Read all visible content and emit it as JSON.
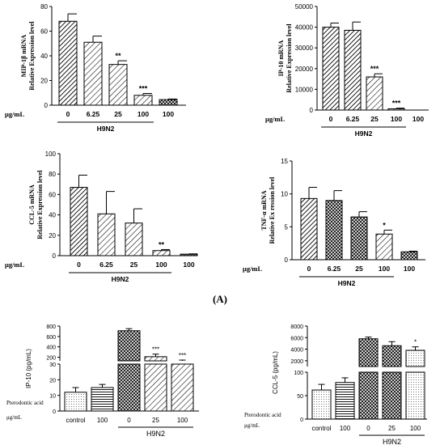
{
  "figure": {
    "panel_label": "(A)"
  },
  "chart_data": [
    {
      "id": "mip",
      "type": "bar",
      "ylabel": [
        "MIP-1β  mRNA",
        "Relative  Expression level"
      ],
      "xunit": "μg/mL",
      "categories": [
        "0",
        "6.25",
        "25",
        "100",
        "100"
      ],
      "values": [
        68,
        51,
        33,
        8,
        4.5
      ],
      "errors": [
        6,
        5,
        3,
        1.5,
        0.5
      ],
      "significance": [
        "",
        "",
        "**",
        "***",
        ""
      ],
      "group_label": "H9N2",
      "ylim": [
        0,
        80
      ],
      "yticks": [
        0,
        20,
        40,
        60,
        80
      ]
    },
    {
      "id": "ip10",
      "type": "bar",
      "ylabel": [
        "IP-10 mRNA",
        "Relative  Expression level"
      ],
      "xunit": "μg/mL",
      "categories": [
        "0",
        "6.25",
        "25",
        "100",
        "100"
      ],
      "values": [
        40000,
        38500,
        16000,
        600,
        0
      ],
      "errors": [
        2000,
        4000,
        1500,
        300,
        0
      ],
      "significance": [
        "",
        "",
        "***",
        "***",
        ""
      ],
      "group_label": "H9N2",
      "ylim": [
        0,
        50000
      ],
      "yticks": [
        0,
        10000,
        20000,
        30000,
        40000,
        50000
      ]
    },
    {
      "id": "ccl5",
      "type": "bar",
      "ylabel": [
        "CCL-5 mRNA",
        "Relative  Expression level"
      ],
      "xunit": "μg/mL",
      "categories": [
        "0",
        "6.25",
        "25",
        "100",
        "100"
      ],
      "values": [
        67,
        41,
        32,
        5,
        1.5
      ],
      "errors": [
        12,
        22,
        14,
        1,
        0.3
      ],
      "significance": [
        "",
        "",
        "",
        "**",
        ""
      ],
      "group_label": "H9N2",
      "ylim": [
        0,
        100
      ],
      "yticks": [
        0,
        20,
        40,
        60,
        80,
        100
      ]
    },
    {
      "id": "tnf",
      "type": "bar",
      "ylabel": [
        "TNF-α  mRNA",
        "Relative  Ex ression level"
      ],
      "xunit": "μg/mL",
      "categories": [
        "0",
        "6.25",
        "25",
        "100",
        "100"
      ],
      "values": [
        9.3,
        9.0,
        6.5,
        3.9,
        1.2
      ],
      "errors": [
        1.7,
        1.5,
        0.8,
        0.6,
        0.1
      ],
      "significance": [
        "",
        "",
        "",
        "*",
        ""
      ],
      "group_label": "H9N2",
      "ylim": [
        0,
        15
      ],
      "yticks": [
        0,
        5,
        10,
        15
      ]
    },
    {
      "id": "ip10pg",
      "type": "bar",
      "ylabel": [
        "IP-10  (pg/mL)"
      ],
      "xunit": "Pterodontic acid",
      "xunit2": "μg/mL",
      "categories": [
        "control",
        "100",
        "0",
        "25",
        "100"
      ],
      "values": [
        12,
        15,
        710,
        210,
        130
      ],
      "errors": [
        3,
        2,
        40,
        50,
        15
      ],
      "significance": [
        "",
        "",
        "",
        "***",
        "***"
      ],
      "group_label": "H9N2",
      "yticks": [
        0,
        10,
        20,
        30,
        200,
        400,
        600,
        800
      ],
      "ybreak": [
        30,
        130
      ]
    },
    {
      "id": "ccl5pg",
      "type": "bar",
      "ylabel": [
        "CCL-5  (pg/mL)"
      ],
      "xunit": "Pterodontic acid",
      "xunit2": "μg/mL",
      "categories": [
        "control",
        "100",
        "0",
        "25",
        "100"
      ],
      "values": [
        62,
        78,
        5800,
        4600,
        3800
      ],
      "errors": [
        12,
        10,
        300,
        700,
        600
      ],
      "significance": [
        "",
        "",
        "",
        "",
        "*"
      ],
      "group_label": "H9N2",
      "yticks": [
        0,
        50,
        100,
        2000,
        4000,
        6000,
        8000
      ],
      "ybreak": [
        100,
        1000
      ]
    }
  ]
}
